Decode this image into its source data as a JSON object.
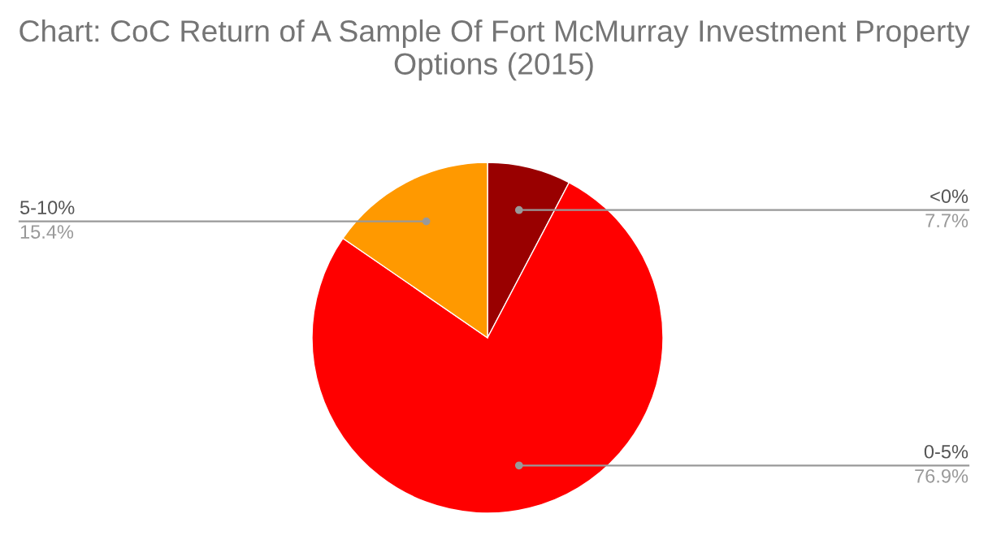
{
  "chart_data": {
    "type": "pie",
    "title": "Chart: CoC Return of A Sample Of Fort McMurray Investment Property Options (2015)",
    "categories": [
      "<0%",
      "0-5%",
      "5-10%"
    ],
    "values": [
      7.7,
      76.9,
      15.4
    ],
    "value_labels": [
      "7.7%",
      "76.9%",
      "15.4%"
    ],
    "colors": [
      "#990000",
      "#ff0000",
      "#ff9900"
    ]
  }
}
